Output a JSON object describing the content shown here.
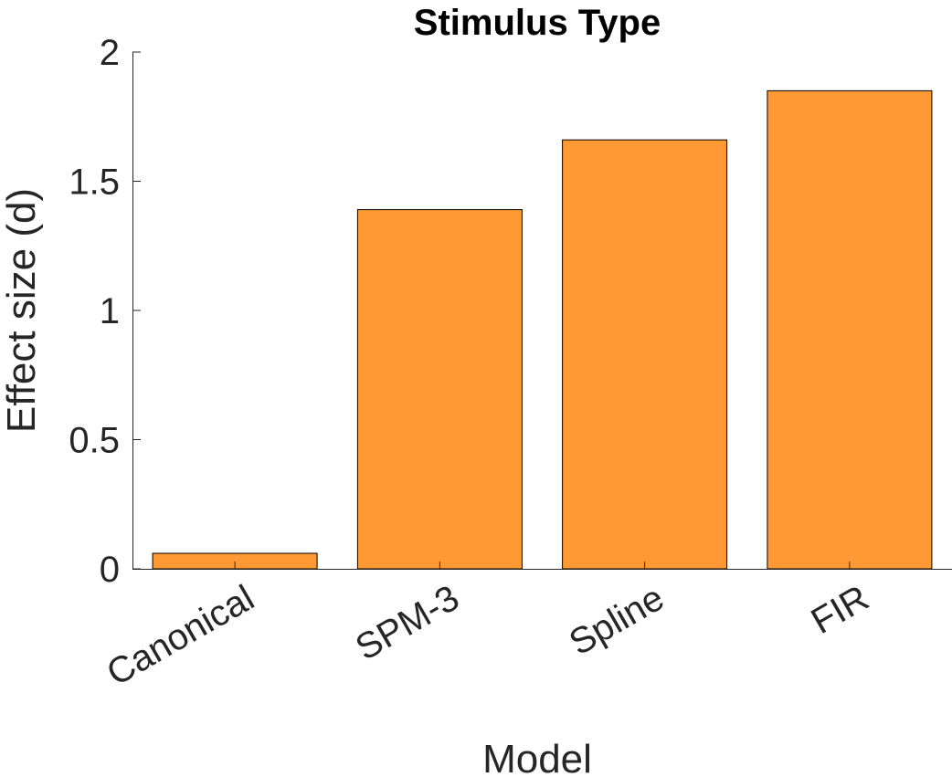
{
  "chart_data": {
    "type": "bar",
    "title": "Stimulus Type",
    "xlabel": "Model",
    "ylabel": "Effect size (d)",
    "categories": [
      "Canonical",
      "SPM-3",
      "Spline",
      "FIR"
    ],
    "values": [
      0.06,
      1.39,
      1.66,
      1.85
    ],
    "ylim": [
      0,
      2
    ],
    "yticks": [
      "0",
      "0.5",
      "1",
      "1.5",
      "2"
    ],
    "grid": false,
    "legend": "none",
    "bar_color": "#FF9933"
  }
}
